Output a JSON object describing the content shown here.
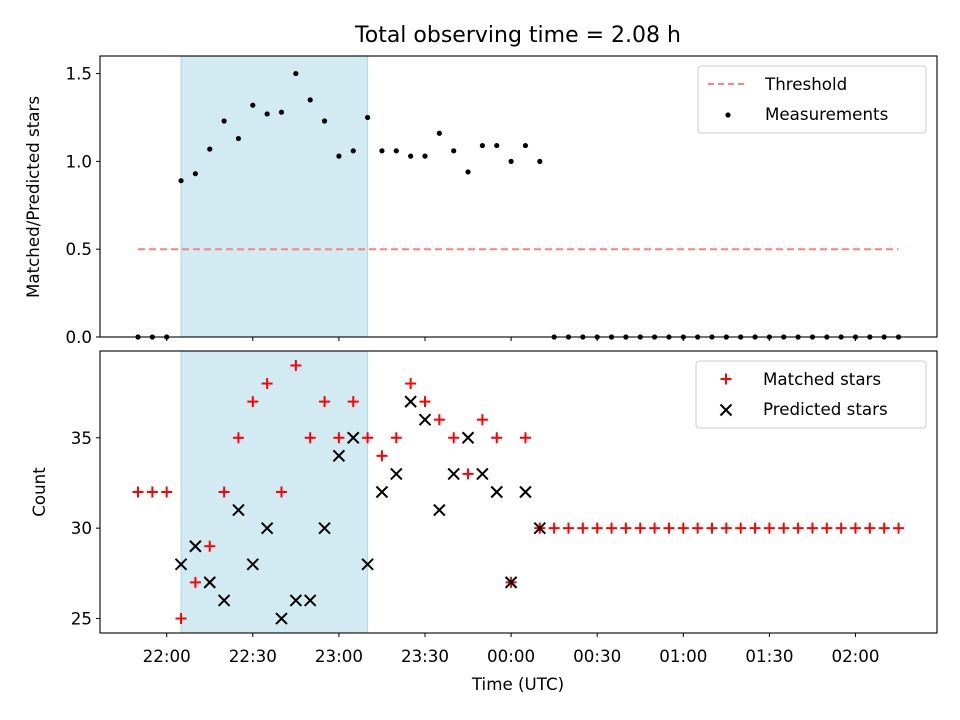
{
  "title": "Total observing time = 2.08 h",
  "colors": {
    "span": "#add8e6",
    "threshold": "#ff7f7f",
    "measurement": "#000000",
    "matched": "#ff0000",
    "predicted": "#000000"
  },
  "chart_data": [
    {
      "type": "scatter",
      "xlabel": "",
      "ylabel": "Matched/Predicted stars",
      "ylim": [
        0,
        1.6
      ],
      "yticks": [
        "0.0",
        "0.5",
        "1.0",
        "1.5"
      ],
      "grid": false,
      "legend_position": "upper right",
      "shaded_interval": [
        "22:05",
        "23:10"
      ],
      "threshold": {
        "name": "Threshold",
        "style": "dashed line",
        "value": 0.5,
        "x_range": [
          "21:50",
          "02:15"
        ]
      },
      "measurements": {
        "name": "Measurements",
        "x": [
          "21:50",
          "21:55",
          "22:00",
          "22:05",
          "22:10",
          "22:15",
          "22:20",
          "22:25",
          "22:30",
          "22:35",
          "22:40",
          "22:45",
          "22:50",
          "22:55",
          "23:00",
          "23:05",
          "23:10",
          "23:15",
          "23:20",
          "23:25",
          "23:30",
          "23:35",
          "23:40",
          "23:45",
          "23:50",
          "23:55",
          "00:00",
          "00:05",
          "00:10",
          "00:15",
          "00:20",
          "00:25",
          "00:30",
          "00:35",
          "00:40",
          "00:45",
          "00:50",
          "00:55",
          "01:00",
          "01:05",
          "01:10",
          "01:15",
          "01:20",
          "01:25",
          "01:30",
          "01:35",
          "01:40",
          "01:45",
          "01:50",
          "01:55",
          "02:00",
          "02:05",
          "02:10",
          "02:15"
        ],
        "y": [
          0,
          0,
          0,
          0.89,
          0.93,
          1.07,
          1.23,
          1.13,
          1.32,
          1.27,
          1.28,
          1.5,
          1.35,
          1.23,
          1.03,
          1.06,
          1.25,
          1.06,
          1.06,
          1.03,
          1.03,
          1.16,
          1.06,
          0.94,
          1.09,
          1.09,
          1.0,
          1.09,
          1.0,
          0,
          0,
          0,
          0,
          0,
          0,
          0,
          0,
          0,
          0,
          0,
          0,
          0,
          0,
          0,
          0,
          0,
          0,
          0,
          0,
          0,
          0,
          0,
          0,
          0
        ]
      }
    },
    {
      "type": "scatter",
      "xlabel": "Time (UTC)",
      "ylabel": "Count",
      "ylim": [
        24.2,
        39.8
      ],
      "yticks": [
        "25",
        "30",
        "35"
      ],
      "xticks": [
        "22:00",
        "22:30",
        "23:00",
        "23:30",
        "00:00",
        "00:30",
        "01:00",
        "01:30",
        "02:00"
      ],
      "grid": false,
      "legend_position": "upper right",
      "shaded_interval": [
        "22:05",
        "23:10"
      ],
      "series": [
        {
          "name": "Matched stars",
          "marker": "+",
          "x": [
            "21:50",
            "21:55",
            "22:00",
            "22:05",
            "22:10",
            "22:15",
            "22:20",
            "22:25",
            "22:30",
            "22:35",
            "22:40",
            "22:45",
            "22:50",
            "22:55",
            "23:00",
            "23:05",
            "23:10",
            "23:15",
            "23:20",
            "23:25",
            "23:30",
            "23:35",
            "23:40",
            "23:45",
            "23:50",
            "23:55",
            "00:00",
            "00:05",
            "00:10",
            "00:15",
            "00:20",
            "00:25",
            "00:30",
            "00:35",
            "00:40",
            "00:45",
            "00:50",
            "00:55",
            "01:00",
            "01:05",
            "01:10",
            "01:15",
            "01:20",
            "01:25",
            "01:30",
            "01:35",
            "01:40",
            "01:45",
            "01:50",
            "01:55",
            "02:00",
            "02:05",
            "02:10",
            "02:15"
          ],
          "y": [
            32,
            32,
            32,
            25,
            27,
            29,
            32,
            35,
            37,
            38,
            32,
            39,
            35,
            37,
            35,
            37,
            35,
            34,
            35,
            38,
            37,
            36,
            35,
            33,
            36,
            35,
            27,
            35,
            30,
            30,
            30,
            30,
            30,
            30,
            30,
            30,
            30,
            30,
            30,
            30,
            30,
            30,
            30,
            30,
            30,
            30,
            30,
            30,
            30,
            30,
            30,
            30,
            30,
            30
          ]
        },
        {
          "name": "Predicted stars",
          "marker": "x",
          "x": [
            "22:05",
            "22:10",
            "22:15",
            "22:20",
            "22:25",
            "22:30",
            "22:35",
            "22:40",
            "22:45",
            "22:50",
            "22:55",
            "23:00",
            "23:05",
            "23:10",
            "23:15",
            "23:20",
            "23:25",
            "23:30",
            "23:35",
            "23:40",
            "23:45",
            "23:50",
            "23:55",
            "00:00",
            "00:05",
            "00:10"
          ],
          "y": [
            28,
            29,
            27,
            26,
            31,
            28,
            30,
            25,
            26,
            26,
            30,
            34,
            35,
            28,
            32,
            33,
            37,
            36,
            31,
            33,
            35,
            33,
            32,
            27,
            32,
            30
          ]
        }
      ]
    }
  ]
}
